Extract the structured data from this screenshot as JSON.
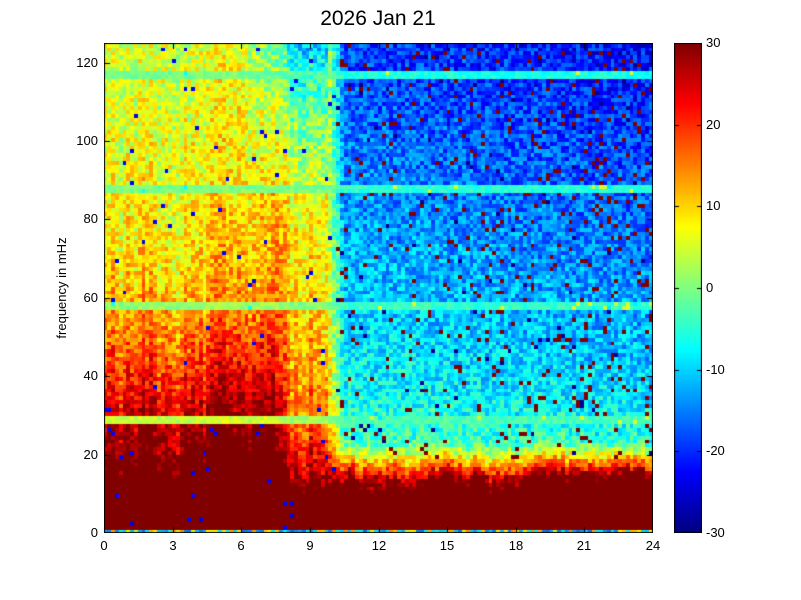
{
  "figure": {
    "background": "#ffffff"
  },
  "chart_data": {
    "type": "heatmap",
    "title": "2026 Jan 21",
    "xlabel": "",
    "ylabel": "frequency in mHz",
    "x_range": [
      0,
      24
    ],
    "x_ticks": [
      0,
      3,
      6,
      9,
      12,
      15,
      18,
      21,
      24
    ],
    "y_range": [
      0,
      125
    ],
    "y_ticks": [
      0,
      20,
      40,
      60,
      80,
      100,
      120
    ],
    "colormap": "jet",
    "color_range": [
      -30,
      30
    ],
    "colorbar_ticks": [
      30,
      20,
      10,
      0,
      -10,
      -20,
      -30
    ],
    "grid": {
      "cols": 144,
      "rows": 125
    },
    "description": "Dynamic power spectrogram for 2026 Jan 21: saturated dark-red power band below ~10 mHz all day; warm (yellow/orange/red) broadband power with vertical streaks from 0 to ~10 h at all frequencies; cool blue background from ~10 h to 24 h above ~25 mHz with scattered dark-red speckles increasing toward late hours; narrow light-green horizontal calibration stripes near 29, 58, 88 and 117 mHz; jet colorbar from -30 (dark blue) to +30 (dark red).",
    "render": {
      "seed": 20260121,
      "noise_amplitude": 5.5,
      "stripes_mHz": [
        29,
        58,
        88,
        117
      ],
      "stripe_half_width_mHz": 1.0,
      "warm_end_hour": 9.8,
      "warm_transition_hours": 0.7,
      "low_freq_band_peak": 65,
      "low_freq_band_scale_mHz": 7.5,
      "speckle_value": 31,
      "speckle_base_density": 0.025,
      "speckle_density_per_hour": 0.0035,
      "blue_speckle_density_warm": 0.012
    }
  }
}
